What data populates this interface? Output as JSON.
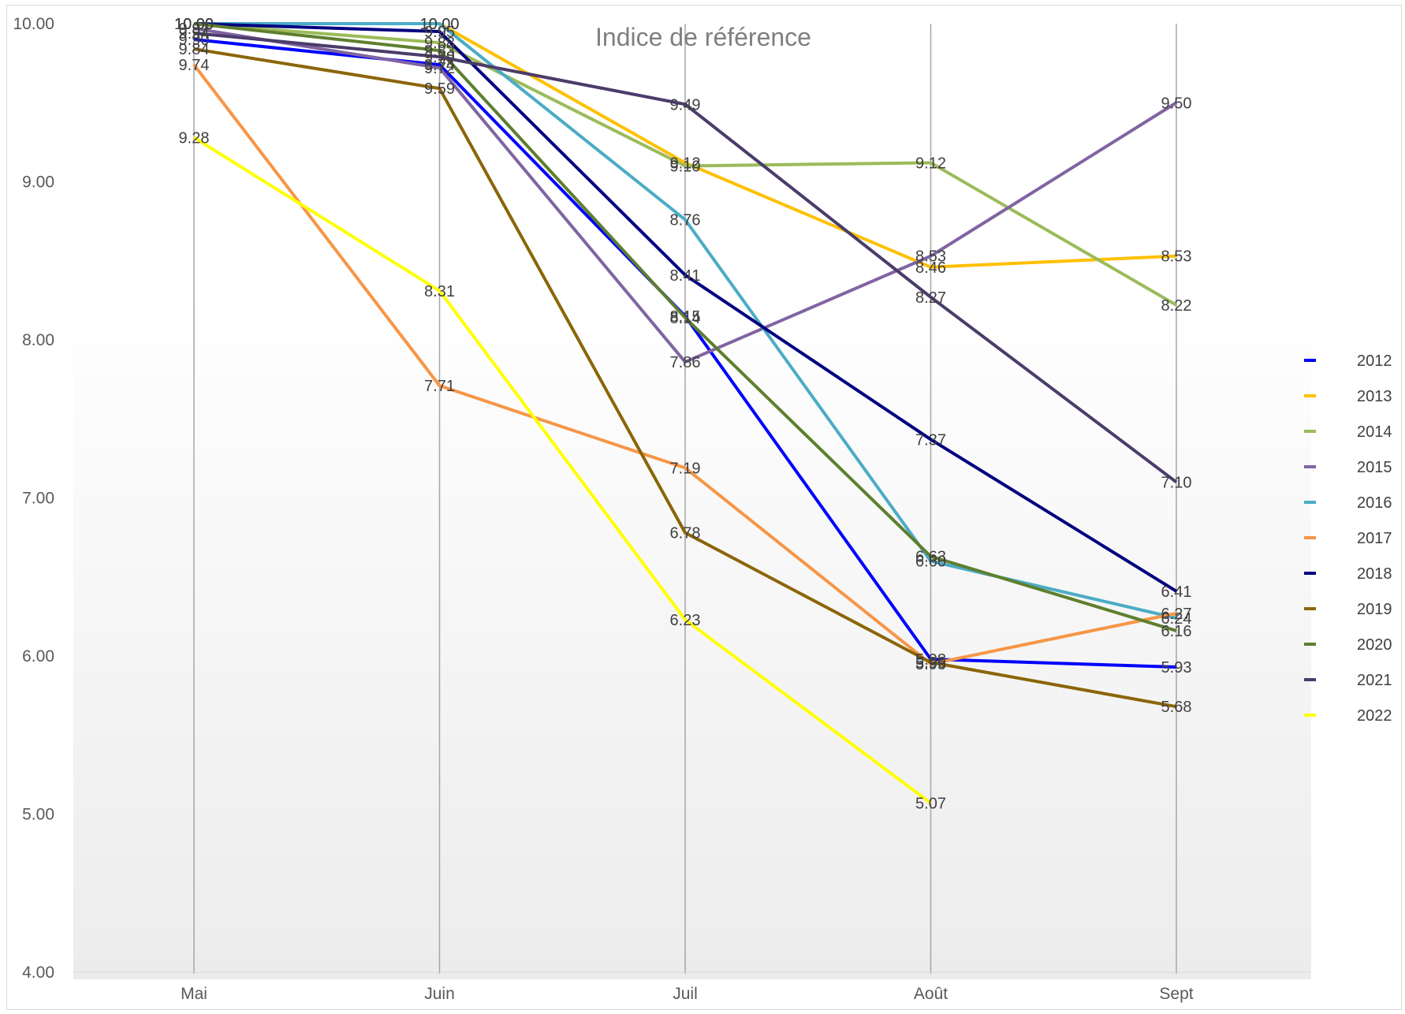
{
  "chart_data": {
    "type": "line",
    "title": "Indice de référence",
    "xlabel": "",
    "ylabel": "",
    "categories": [
      "Mai",
      "Juin",
      "Juil",
      "Août",
      "Sept"
    ],
    "ylim": [
      4,
      10
    ],
    "y_ticks": [
      "4.00",
      "5.00",
      "6.00",
      "7.00",
      "8.00",
      "9.00",
      "10.00"
    ],
    "legend_position": "right",
    "grid": "vertical lines at categories",
    "series": [
      {
        "name": "2012",
        "color": "#0000FF",
        "values": [
          9.9,
          9.74,
          8.15,
          5.98,
          5.93
        ]
      },
      {
        "name": "2013",
        "color": "#FFC000",
        "values": [
          10.0,
          10.0,
          9.12,
          8.46,
          8.53
        ]
      },
      {
        "name": "2014",
        "color": "#9BBB59",
        "values": [
          10.0,
          9.88,
          9.1,
          9.12,
          8.22
        ]
      },
      {
        "name": "2015",
        "color": "#8064A2",
        "values": [
          9.97,
          9.72,
          7.86,
          8.53,
          9.5
        ]
      },
      {
        "name": "2016",
        "color": "#4BACC6",
        "values": [
          10.0,
          10.0,
          8.76,
          6.6,
          6.24
        ]
      },
      {
        "name": "2017",
        "color": "#F79646",
        "values": [
          9.74,
          7.71,
          7.19,
          5.95,
          6.27
        ]
      },
      {
        "name": "2018",
        "color": "#000080",
        "values": [
          10.0,
          9.95,
          8.41,
          7.37,
          6.41
        ]
      },
      {
        "name": "2019",
        "color": "#8B6508",
        "values": [
          9.84,
          9.59,
          6.78,
          5.96,
          5.68
        ]
      },
      {
        "name": "2020",
        "color": "#5E7F2E",
        "values": [
          10.0,
          9.83,
          8.14,
          6.63,
          6.16
        ]
      },
      {
        "name": "2021",
        "color": "#4B3C6B",
        "values": [
          9.94,
          9.79,
          9.49,
          8.27,
          7.1
        ]
      },
      {
        "name": "2022",
        "color": "#FFFF00",
        "values": [
          9.28,
          8.31,
          6.23,
          5.07,
          null
        ]
      }
    ]
  }
}
